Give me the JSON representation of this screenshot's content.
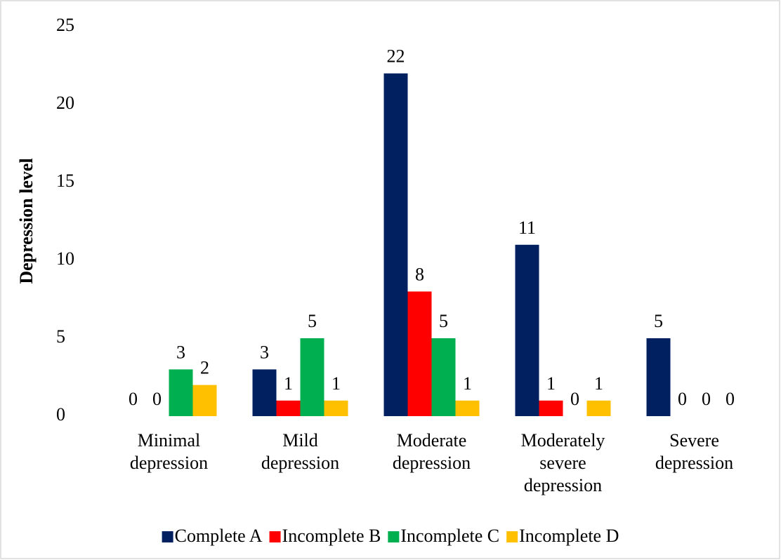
{
  "chart_data": {
    "type": "bar",
    "y_label": "Depression level",
    "categories": [
      "Minimal depression",
      "Mild depression",
      "Moderate depression",
      "Moderately severe depression",
      "Severe depression"
    ],
    "series": [
      {
        "name": "Complete A",
        "color": "#002060",
        "values": [
          0,
          3,
          22,
          11,
          5
        ]
      },
      {
        "name": "Incomplete B",
        "color": "#ff0000",
        "values": [
          0,
          1,
          8,
          1,
          0
        ]
      },
      {
        "name": "Incomplete C",
        "color": "#00b050",
        "values": [
          3,
          5,
          5,
          0,
          0
        ]
      },
      {
        "name": "Incomplete D",
        "color": "#ffc000",
        "values": [
          2,
          1,
          1,
          1,
          0
        ]
      }
    ],
    "ylim": [
      0,
      25
    ],
    "yticks": [
      0,
      5,
      10,
      15,
      20,
      25
    ],
    "grid": false,
    "legend": "bottom"
  }
}
